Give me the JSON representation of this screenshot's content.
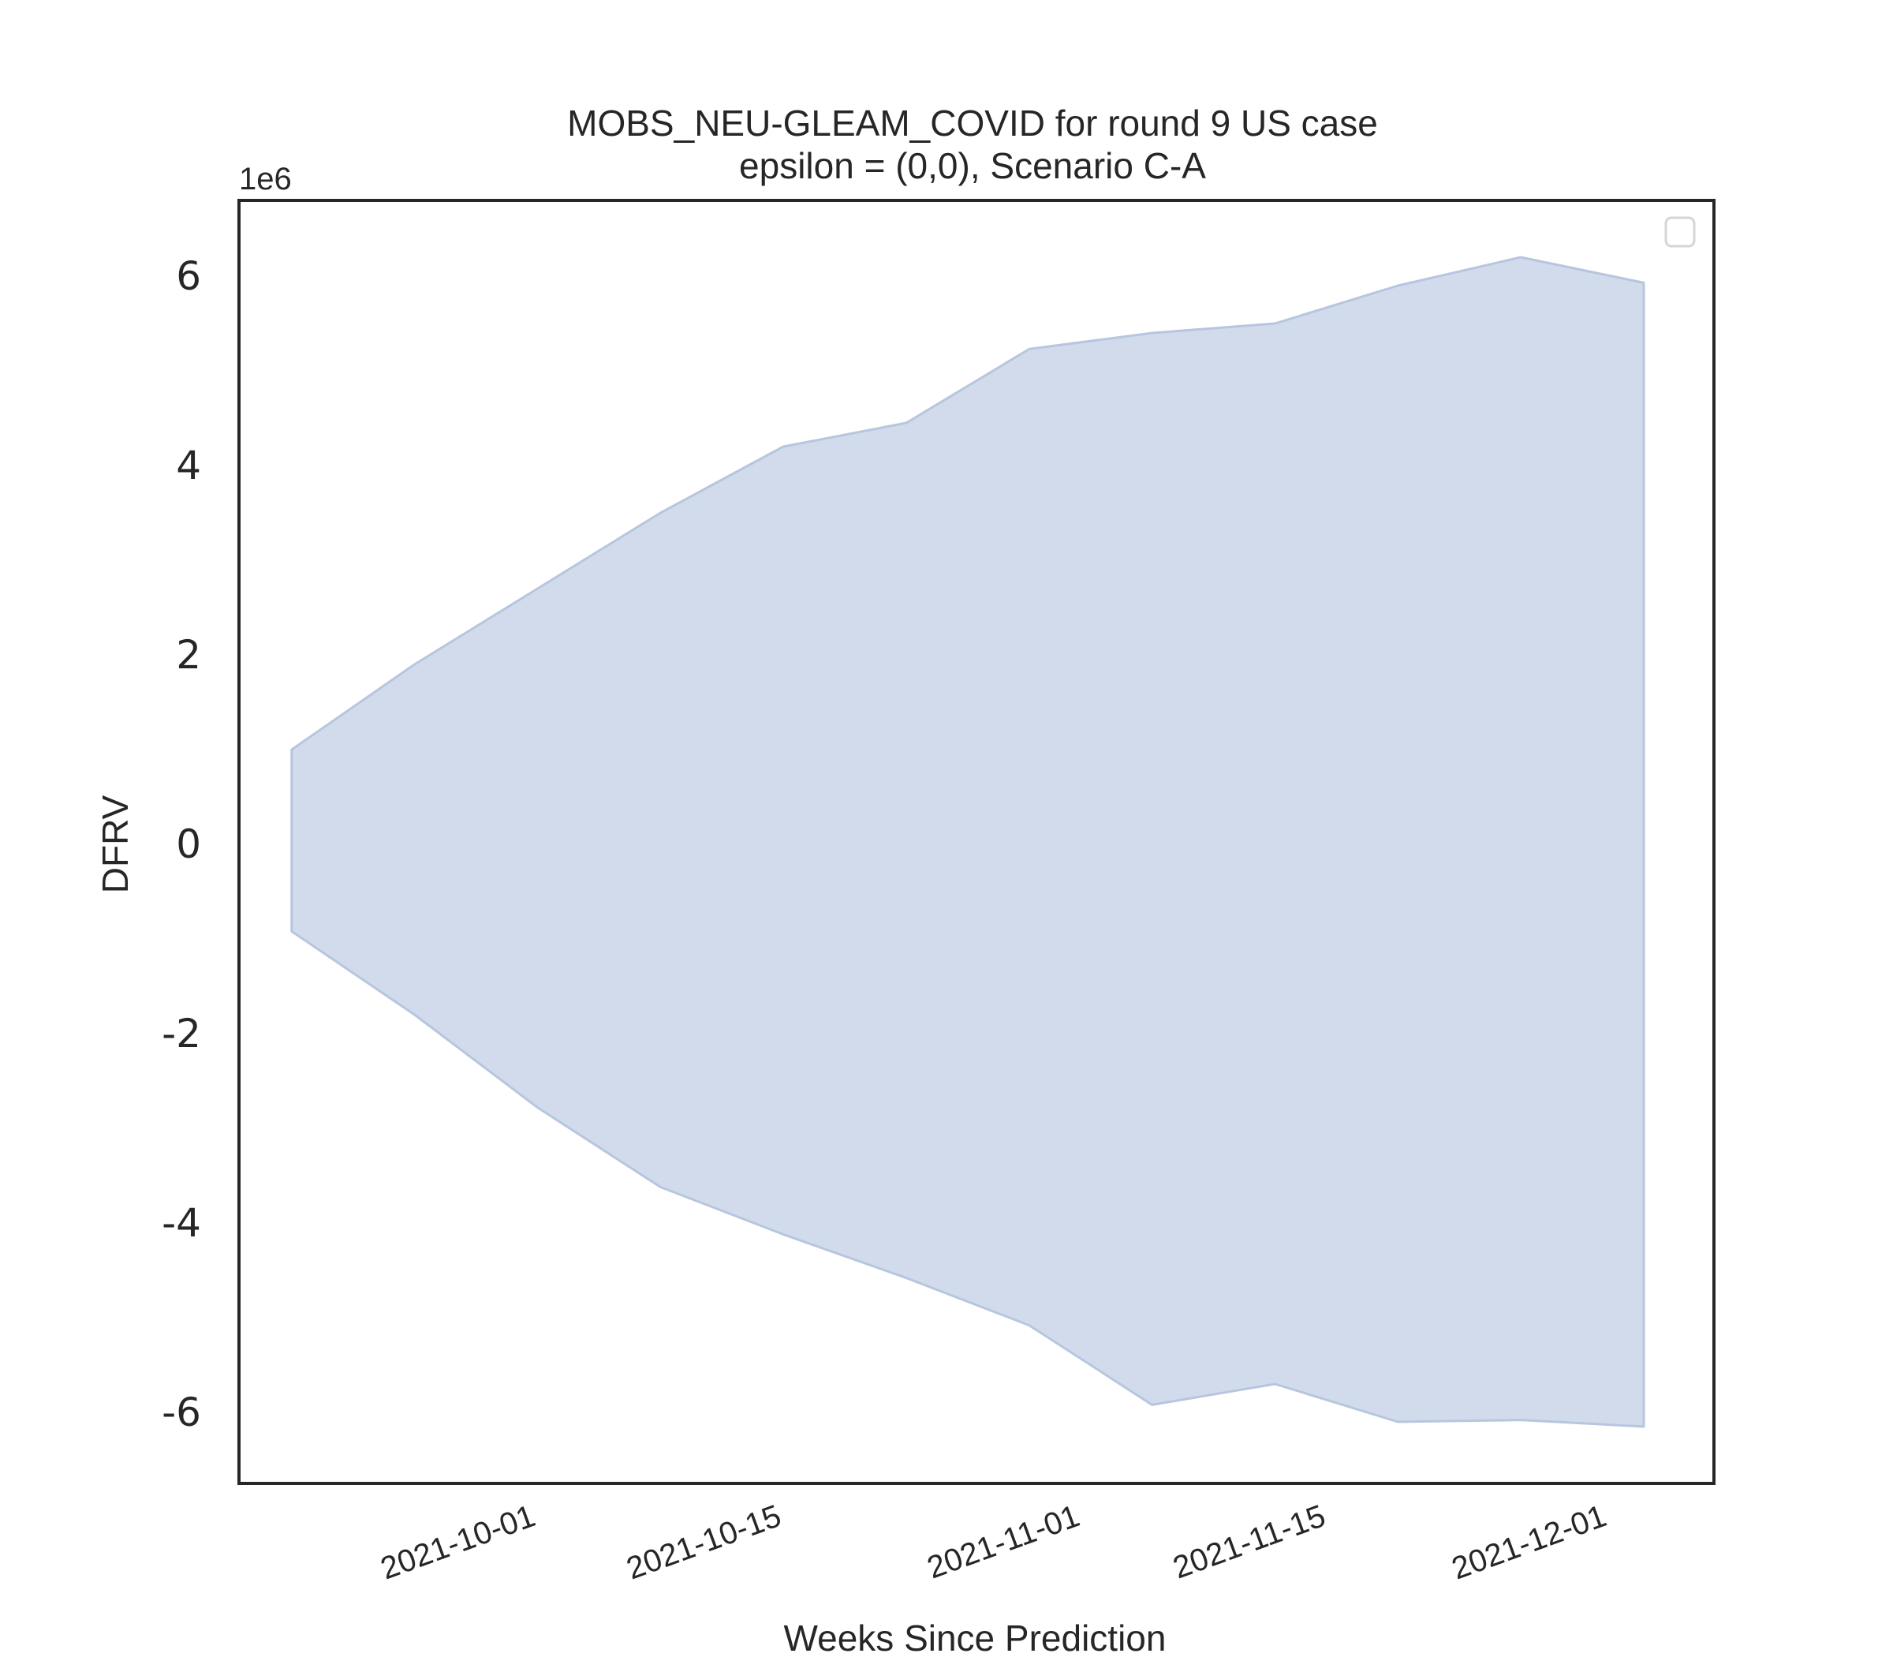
{
  "chart_data": {
    "type": "area",
    "title": "MOBS_NEU-GLEAM_COVID for round 9 US case",
    "subtitle": "epsilon = (0,0), Scenario C-A",
    "xlabel": "Weeks Since Prediction",
    "ylabel": "DFRV",
    "y_offset_label": "1e6",
    "y_multiplier": 1000000,
    "ylim": [
      -6.75,
      6.8
    ],
    "xlim": [
      "2021-09-15",
      "2021-12-08"
    ],
    "grid": false,
    "legend": {
      "placement": "top-right",
      "entries": []
    },
    "fill_color": "#d1dbeb",
    "edge_color": "#b7c6df",
    "x": [
      "2021-09-18",
      "2021-09-25",
      "2021-10-02",
      "2021-10-09",
      "2021-10-16",
      "2021-10-23",
      "2021-10-30",
      "2021-11-06",
      "2021-11-13",
      "2021-11-20",
      "2021-11-27",
      "2021-12-04"
    ],
    "series": [
      {
        "name": "",
        "role": "upper",
        "values": [
          1.0,
          1.9,
          2.7,
          3.5,
          4.2,
          4.45,
          5.23,
          5.4,
          5.5,
          5.9,
          6.2,
          5.93
        ]
      },
      {
        "name": "",
        "role": "lower",
        "values": [
          -0.92,
          -1.8,
          -2.78,
          -3.62,
          -4.12,
          -4.58,
          -5.08,
          -5.92,
          -5.7,
          -6.1,
          -6.08,
          -6.15
        ]
      }
    ],
    "yticks": [
      -6,
      -4,
      -2,
      0,
      2,
      4,
      6
    ],
    "ytick_labels": [
      "-6",
      "-4",
      "-2",
      "0",
      "2",
      "4",
      "6"
    ],
    "xticks": [
      "2021-10-01",
      "2021-10-15",
      "2021-11-01",
      "2021-11-15",
      "2021-12-01"
    ],
    "xtick_labels": [
      "2021-10-01",
      "2021-10-15",
      "2021-11-01",
      "2021-11-15",
      "2021-12-01"
    ]
  }
}
